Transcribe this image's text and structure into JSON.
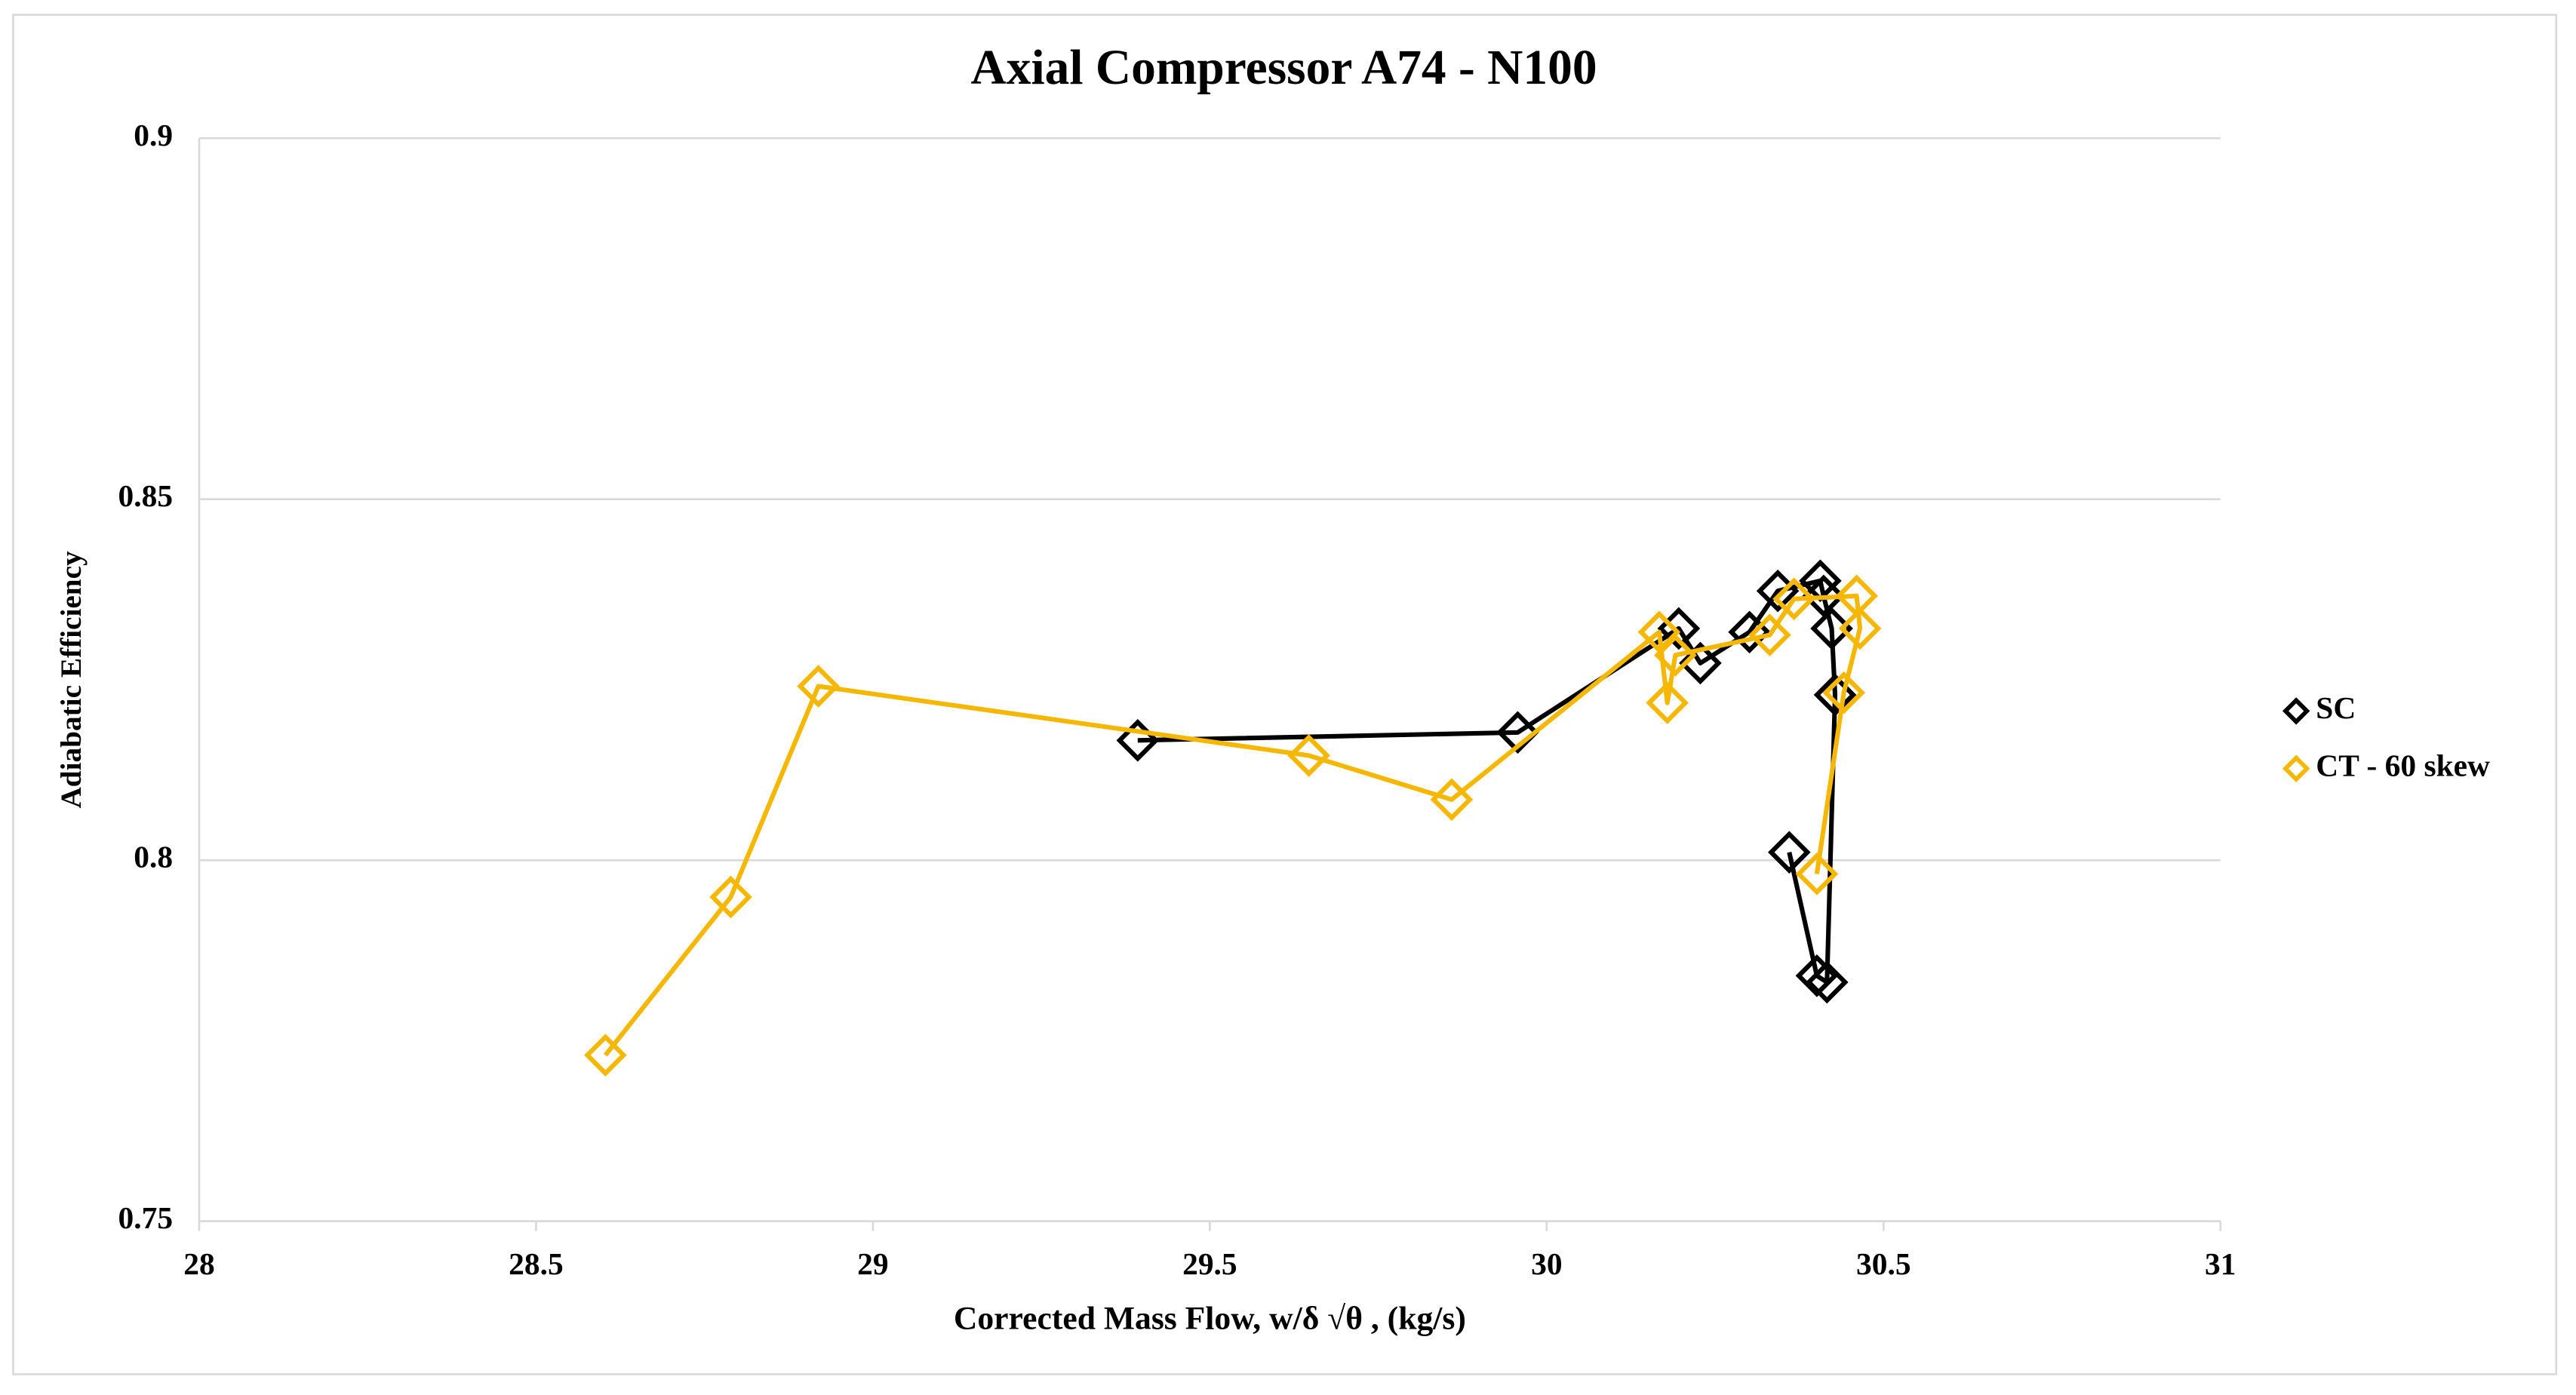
{
  "chart_data": {
    "type": "line",
    "title": "Axial Compressor A74 - N100",
    "x_label": "Corrected Mass Flow, w/δ √θ , (kg/s)",
    "y_label": "Adiabatic Efficiency",
    "xlim": [
      28,
      31
    ],
    "xticks": [
      28,
      28.5,
      29,
      29.5,
      30,
      30.5,
      31
    ],
    "ylim": [
      0.75,
      0.9
    ],
    "yticks": [
      0.75,
      0.8,
      0.85,
      0.9
    ],
    "grid": true,
    "legend": "right",
    "series": [
      {
        "name": "SC",
        "color": "#000000",
        "x": [
          29.393,
          29.957,
          30.196,
          30.228,
          30.301,
          30.343,
          30.406,
          30.411,
          30.423,
          30.428,
          30.416,
          30.401,
          30.36
        ],
        "values": [
          0.8166,
          0.8177,
          0.8321,
          0.8273,
          0.8316,
          0.8373,
          0.8387,
          0.8366,
          0.8321,
          0.8229,
          0.7831,
          0.784,
          0.8011
        ]
      },
      {
        "name": "CT - 60 skew",
        "color": "#F5B700",
        "x": [
          28.603,
          28.789,
          28.919,
          29.647,
          29.859,
          30.167,
          30.179,
          30.191,
          30.331,
          30.367,
          30.46,
          30.465,
          30.441,
          30.401
        ],
        "values": [
          0.773,
          0.7949,
          0.8241,
          0.8145,
          0.8084,
          0.8316,
          0.8218,
          0.8284,
          0.8312,
          0.8362,
          0.8366,
          0.8321,
          0.8232,
          0.7981
        ]
      }
    ]
  }
}
